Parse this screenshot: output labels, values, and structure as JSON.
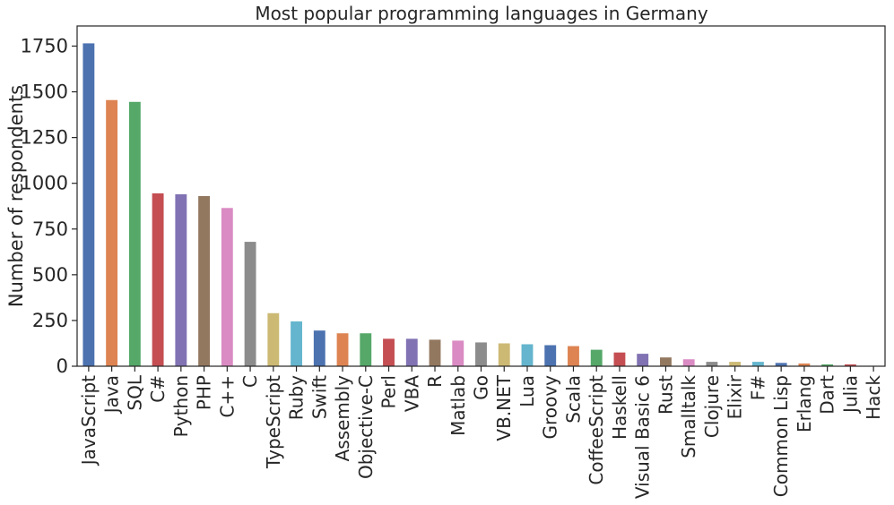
{
  "chart_data": {
    "type": "bar",
    "title": "Most popular programming languages in Germany",
    "xlabel": "",
    "ylabel": "Number of respondents",
    "ylim": [
      0,
      1860
    ],
    "yticks": [
      0,
      250,
      500,
      750,
      1000,
      1250,
      1500,
      1750
    ],
    "grid": false,
    "legend": "none",
    "categories": [
      "JavaScript",
      "Java",
      "SQL",
      "C#",
      "Python",
      "PHP",
      "C++",
      "C",
      "TypeScript",
      "Ruby",
      "Swift",
      "Assembly",
      "Objective-C",
      "Perl",
      "VBA",
      "R",
      "Matlab",
      "Go",
      "VB.NET",
      "Lua",
      "Groovy",
      "Scala",
      "CoffeeScript",
      "Haskell",
      "Visual Basic 6",
      "Rust",
      "Smalltalk",
      "Clojure",
      "Elixir",
      "F#",
      "Common Lisp",
      "Erlang",
      "Dart",
      "Julia",
      "Hack"
    ],
    "values": [
      1765,
      1455,
      1445,
      945,
      940,
      930,
      865,
      680,
      290,
      245,
      195,
      180,
      180,
      150,
      150,
      145,
      140,
      130,
      125,
      120,
      115,
      110,
      90,
      75,
      68,
      48,
      38,
      24,
      24,
      24,
      18,
      15,
      10,
      10,
      2
    ],
    "palette": [
      "#4c72b0",
      "#dd8452",
      "#55a868",
      "#c44e52",
      "#8172b3",
      "#937860",
      "#da8bc3",
      "#8c8c8c",
      "#ccb974",
      "#64b5cd"
    ]
  }
}
